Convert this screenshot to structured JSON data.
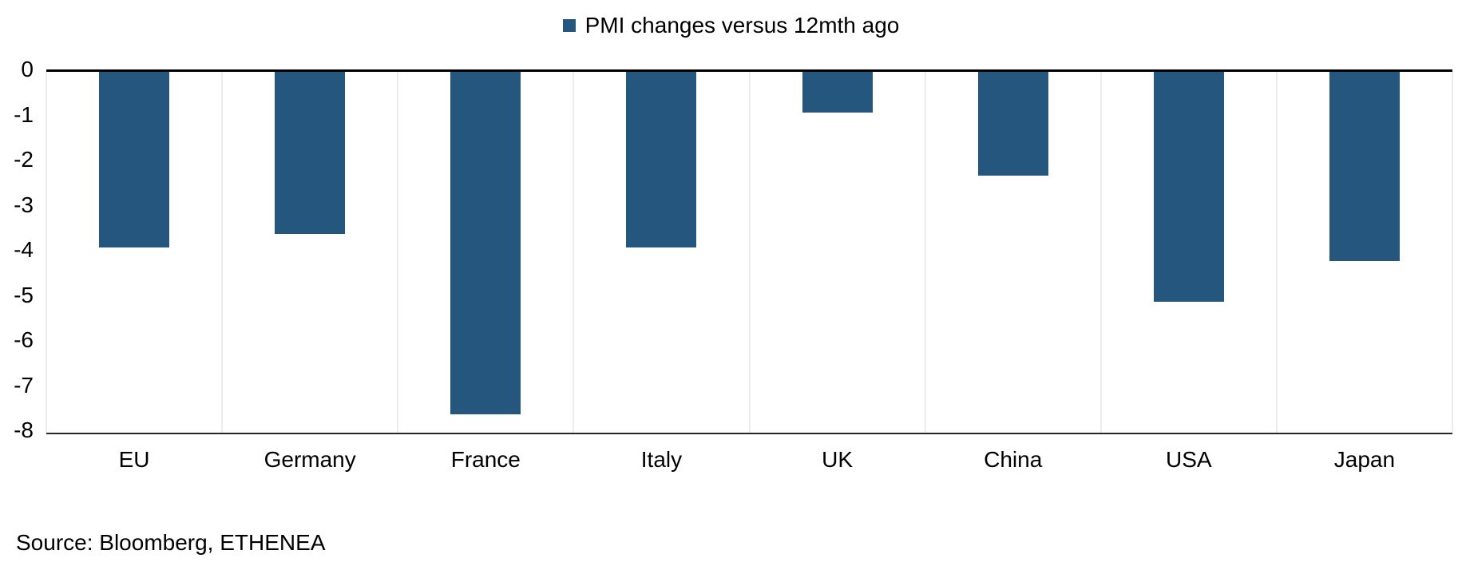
{
  "legend": {
    "label": "PMI changes versus 12mth ago"
  },
  "source": "Source: Bloomberg, ETHENEA",
  "colors": {
    "bar": "#25567E",
    "grid": "#D9D9D9",
    "zero_axis": "#000000",
    "bottom_axis": "#262626"
  },
  "chart_data": {
    "type": "bar",
    "title": "PMI changes versus 12mth ago",
    "categories": [
      "EU",
      "Germany",
      "France",
      "Italy",
      "UK",
      "China",
      "USA",
      "Japan"
    ],
    "values": [
      -3.9,
      -3.6,
      -7.6,
      -3.9,
      -0.9,
      -2.3,
      -5.1,
      -4.2
    ],
    "xlabel": "",
    "ylabel": "",
    "ylim": [
      -8,
      0
    ],
    "yticks": [
      0,
      -1,
      -2,
      -3,
      -4,
      -5,
      -6,
      -7,
      -8
    ],
    "legend_position": "top-center",
    "grid": "vertical-only",
    "bar_color": "#25567E"
  }
}
